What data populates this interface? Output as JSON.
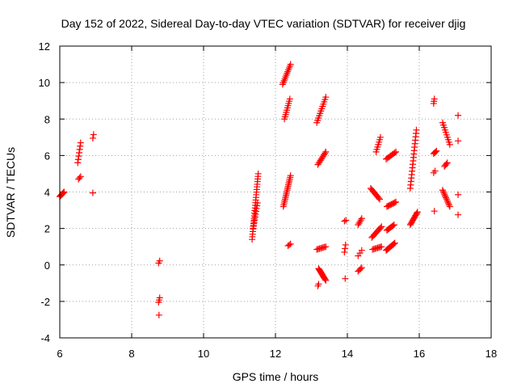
{
  "chart_data": {
    "type": "scatter",
    "title": "Day 152 of 2022, Sidereal Day-to-day VTEC variation (SDTVAR) for receiver djig",
    "xlabel": "GPS time / hours",
    "ylabel": "SDTVAR / TECUs",
    "xlim": [
      6,
      18
    ],
    "ylim": [
      -4,
      12
    ],
    "xticks": [
      "6",
      "8",
      "10",
      "12",
      "14",
      "16",
      "18"
    ],
    "yticks": [
      "-4",
      "-2",
      "0",
      "2",
      "4",
      "6",
      "8",
      "10",
      "12"
    ],
    "grid": true,
    "marker": "plus",
    "color": "#ff0000",
    "segments": [
      {
        "x0": 6.0,
        "y0": 3.75,
        "x1": 6.12,
        "y1": 4.0,
        "n": 8
      },
      {
        "x0": 6.5,
        "y0": 5.6,
        "x1": 6.58,
        "y1": 6.7,
        "n": 7
      },
      {
        "x0": 6.52,
        "y0": 4.7,
        "x1": 6.58,
        "y1": 4.85,
        "n": 3
      },
      {
        "x0": 6.92,
        "y0": 6.95,
        "x1": 6.94,
        "y1": 7.15,
        "n": 2
      },
      {
        "x0": 6.92,
        "y0": 3.95,
        "x1": 6.92,
        "y1": 3.95,
        "n": 1
      },
      {
        "x0": 8.75,
        "y0": 0.1,
        "x1": 8.78,
        "y1": 0.22,
        "n": 2
      },
      {
        "x0": 8.75,
        "y0": -2.05,
        "x1": 8.78,
        "y1": -1.8,
        "n": 3
      },
      {
        "x0": 8.76,
        "y0": -2.75,
        "x1": 8.76,
        "y1": -2.75,
        "n": 1
      },
      {
        "x0": 11.35,
        "y0": 1.4,
        "x1": 11.52,
        "y1": 5.0,
        "n": 26
      },
      {
        "x0": 11.38,
        "y0": 2.0,
        "x1": 11.5,
        "y1": 3.4,
        "n": 10
      },
      {
        "x0": 12.2,
        "y0": 9.9,
        "x1": 12.42,
        "y1": 11.0,
        "n": 12
      },
      {
        "x0": 12.25,
        "y0": 8.0,
        "x1": 12.4,
        "y1": 9.1,
        "n": 10
      },
      {
        "x0": 12.22,
        "y0": 3.2,
        "x1": 12.42,
        "y1": 4.9,
        "n": 18
      },
      {
        "x0": 12.35,
        "y0": 1.05,
        "x1": 12.42,
        "y1": 1.15,
        "n": 3
      },
      {
        "x0": 13.15,
        "y0": 7.8,
        "x1": 13.4,
        "y1": 9.2,
        "n": 12
      },
      {
        "x0": 13.18,
        "y0": 5.5,
        "x1": 13.4,
        "y1": 6.2,
        "n": 10
      },
      {
        "x0": 13.15,
        "y0": 0.85,
        "x1": 13.4,
        "y1": 1.0,
        "n": 8
      },
      {
        "x0": 13.18,
        "y0": -1.15,
        "x1": 13.2,
        "y1": -1.05,
        "n": 2
      },
      {
        "x0": 13.2,
        "y0": -0.2,
        "x1": 13.4,
        "y1": -0.85,
        "n": 14
      },
      {
        "x0": 13.92,
        "y0": 2.4,
        "x1": 13.96,
        "y1": 2.45,
        "n": 2
      },
      {
        "x0": 13.92,
        "y0": 0.7,
        "x1": 13.95,
        "y1": 1.1,
        "n": 3
      },
      {
        "x0": 13.94,
        "y0": -0.75,
        "x1": 13.94,
        "y1": -0.75,
        "n": 1
      },
      {
        "x0": 14.3,
        "y0": 2.2,
        "x1": 14.4,
        "y1": 2.55,
        "n": 5
      },
      {
        "x0": 14.3,
        "y0": 0.5,
        "x1": 14.4,
        "y1": 0.8,
        "n": 3
      },
      {
        "x0": 14.3,
        "y0": -0.35,
        "x1": 14.4,
        "y1": -0.15,
        "n": 4
      },
      {
        "x0": 14.65,
        "y0": 4.2,
        "x1": 14.9,
        "y1": 3.6,
        "n": 10
      },
      {
        "x0": 14.8,
        "y0": 6.2,
        "x1": 14.92,
        "y1": 7.0,
        "n": 7
      },
      {
        "x0": 14.68,
        "y0": 1.5,
        "x1": 14.95,
        "y1": 2.1,
        "n": 10
      },
      {
        "x0": 14.7,
        "y0": 0.85,
        "x1": 14.95,
        "y1": 1.0,
        "n": 8
      },
      {
        "x0": 15.08,
        "y0": 5.8,
        "x1": 15.35,
        "y1": 6.2,
        "n": 9
      },
      {
        "x0": 15.1,
        "y0": 3.2,
        "x1": 15.35,
        "y1": 3.45,
        "n": 9
      },
      {
        "x0": 15.1,
        "y0": 1.9,
        "x1": 15.3,
        "y1": 2.2,
        "n": 8
      },
      {
        "x0": 15.08,
        "y0": 0.8,
        "x1": 15.32,
        "y1": 1.2,
        "n": 12
      },
      {
        "x0": 15.75,
        "y0": 4.2,
        "x1": 15.92,
        "y1": 7.4,
        "n": 18
      },
      {
        "x0": 15.75,
        "y0": 2.2,
        "x1": 15.95,
        "y1": 2.9,
        "n": 12
      },
      {
        "x0": 16.4,
        "y0": 8.85,
        "x1": 16.42,
        "y1": 9.1,
        "n": 3
      },
      {
        "x0": 16.4,
        "y0": 6.1,
        "x1": 16.48,
        "y1": 6.25,
        "n": 4
      },
      {
        "x0": 16.4,
        "y0": 5.05,
        "x1": 16.44,
        "y1": 5.15,
        "n": 2
      },
      {
        "x0": 16.42,
        "y0": 2.95,
        "x1": 16.42,
        "y1": 2.95,
        "n": 1
      },
      {
        "x0": 16.65,
        "y0": 7.8,
        "x1": 16.85,
        "y1": 6.6,
        "n": 10
      },
      {
        "x0": 16.7,
        "y0": 5.4,
        "x1": 16.78,
        "y1": 5.6,
        "n": 4
      },
      {
        "x0": 16.65,
        "y0": 4.1,
        "x1": 16.85,
        "y1": 3.2,
        "n": 12
      },
      {
        "x0": 17.08,
        "y0": 8.2,
        "x1": 17.08,
        "y1": 8.2,
        "n": 1
      },
      {
        "x0": 17.08,
        "y0": 6.8,
        "x1": 17.08,
        "y1": 6.8,
        "n": 1
      },
      {
        "x0": 17.08,
        "y0": 3.85,
        "x1": 17.08,
        "y1": 3.85,
        "n": 1
      },
      {
        "x0": 17.08,
        "y0": 2.75,
        "x1": 17.08,
        "y1": 2.75,
        "n": 1
      }
    ]
  }
}
